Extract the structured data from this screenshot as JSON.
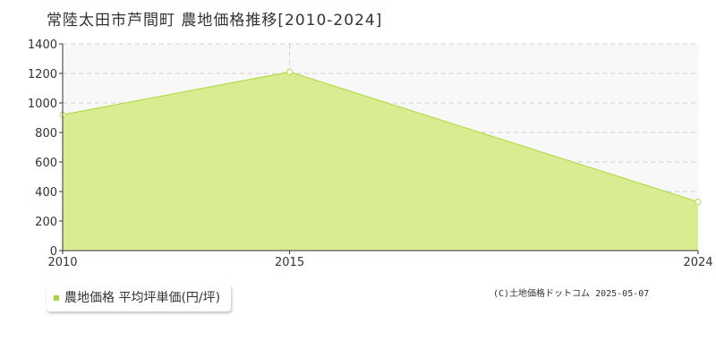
{
  "title": "常陸太田市芦間町 農地価格推移[2010-2024]",
  "legend": {
    "label": "農地価格 平均坪単価(円/坪)"
  },
  "copyright": "(C)土地価格ドットコム 2025-05-07",
  "colors": {
    "area_fill": "#d9ec92",
    "line": "#b5dc4a",
    "marker": "#a8d43f",
    "plot_bg": "#f8f8f8",
    "grid": "#d0d0d0"
  },
  "chart_data": {
    "type": "area",
    "title": "常陸太田市芦間町 農地価格推移[2010-2024]",
    "xlabel": "",
    "ylabel": "",
    "x": [
      2010,
      2015,
      2024
    ],
    "x_ticks": [
      "2010",
      "2015",
      "2024"
    ],
    "series": [
      {
        "name": "農地価格 平均坪単価(円/坪)",
        "values": [
          920,
          1210,
          330
        ]
      }
    ],
    "ylim": [
      0,
      1400
    ],
    "y_ticks": [
      0,
      200,
      400,
      600,
      800,
      1000,
      1200,
      1400
    ],
    "grid": true,
    "legend_position": "bottom-left"
  }
}
